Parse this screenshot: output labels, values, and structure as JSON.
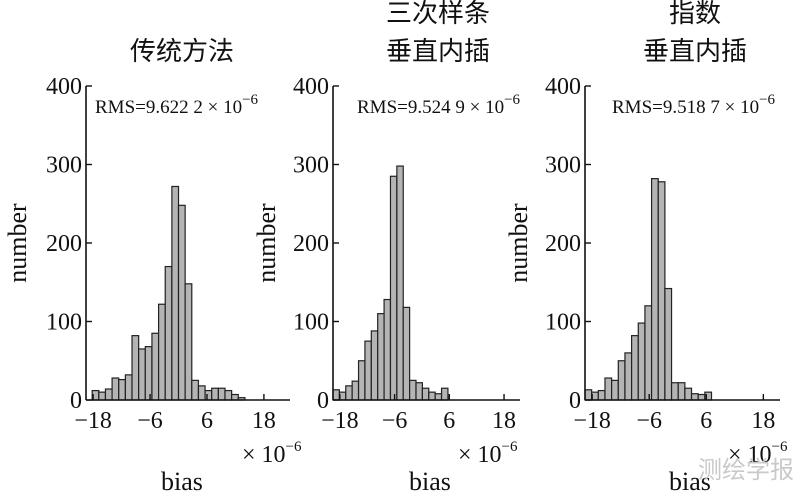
{
  "chart_data": [
    {
      "type": "bar",
      "title_lines": [
        "传统方法"
      ],
      "xlabel": "bias",
      "ylabel": "number",
      "annotation": "RMS=9.622 2 × 10",
      "annotation_exp": "−6",
      "x_scale_base": "× 10",
      "x_scale_exp": "−6",
      "xlim": [
        -19.5,
        23.5
      ],
      "ylim": [
        0,
        400
      ],
      "xticks": [
        -18,
        -6,
        6,
        18
      ],
      "xtick_labels": [
        "−18",
        "−6",
        "6",
        "18"
      ],
      "yticks": [
        0,
        100,
        200,
        300,
        400
      ],
      "ytick_labels": [
        "0",
        "100",
        "200",
        "300",
        "400"
      ],
      "bin_width": 1.4,
      "bin_start": -18.2,
      "values": [
        12,
        10,
        14,
        28,
        26,
        32,
        82,
        65,
        68,
        85,
        122,
        170,
        272,
        248,
        148,
        25,
        18,
        12,
        15,
        15,
        12,
        7,
        3
      ]
    },
    {
      "type": "bar",
      "title_lines": [
        "三次样条",
        "垂直内插"
      ],
      "xlabel": "bias",
      "ylabel": "number",
      "annotation": "RMS=9.524 9 × 10",
      "annotation_exp": "−6",
      "x_scale_base": "× 10",
      "x_scale_exp": "−6",
      "xlim": [
        -19.5,
        21.5
      ],
      "ylim": [
        0,
        400
      ],
      "xticks": [
        -18,
        -6,
        6,
        18
      ],
      "xtick_labels": [
        "−18",
        "−6",
        "6",
        "18"
      ],
      "yticks": [
        0,
        100,
        200,
        300,
        400
      ],
      "ytick_labels": [
        "0",
        "100",
        "200",
        "300",
        "400"
      ],
      "bin_width": 1.4,
      "bin_start": -19.5,
      "values": [
        13,
        10,
        18,
        24,
        50,
        75,
        88,
        110,
        128,
        285,
        298,
        118,
        25,
        22,
        15,
        10,
        8,
        15
      ]
    },
    {
      "type": "bar",
      "title_lines": [
        "指数",
        "垂直内插"
      ],
      "xlabel": "bias",
      "ylabel": "number",
      "annotation": "RMS=9.518 7 × 10",
      "annotation_exp": "−6",
      "x_scale_base": "× 10",
      "x_scale_exp": "−6",
      "xlim": [
        -19.5,
        21.5
      ],
      "ylim": [
        0,
        400
      ],
      "xticks": [
        -18,
        -6,
        6,
        18
      ],
      "xtick_labels": [
        "−18",
        "−6",
        "6",
        "18"
      ],
      "yticks": [
        0,
        100,
        200,
        300,
        400
      ],
      "ytick_labels": [
        "0",
        "100",
        "200",
        "300",
        "400"
      ],
      "bin_width": 1.4,
      "bin_start": -19.5,
      "values": [
        13,
        10,
        12,
        28,
        25,
        50,
        60,
        82,
        98,
        120,
        282,
        278,
        142,
        22,
        22,
        15,
        8,
        7,
        10
      ]
    }
  ],
  "watermark": "测绘学报"
}
